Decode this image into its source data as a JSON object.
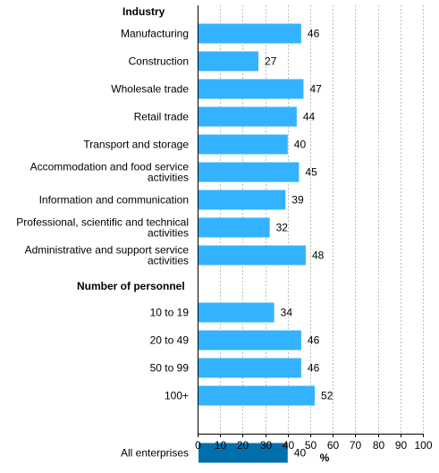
{
  "chart_data": {
    "type": "bar",
    "orientation": "horizontal",
    "xlabel": "%",
    "xlim": [
      0,
      100
    ],
    "xticks": [
      0,
      10,
      20,
      30,
      40,
      50,
      60,
      70,
      80,
      90,
      100
    ],
    "grid": true,
    "groups": [
      {
        "title": "Industry",
        "categories": [
          [
            "Manufacturing"
          ],
          [
            "Construction"
          ],
          [
            "Wholesale trade"
          ],
          [
            "Retail trade"
          ],
          [
            "Transport and storage"
          ],
          [
            "Accommodation and food service",
            "activities"
          ],
          [
            "Information and communication"
          ],
          [
            "Professional, scientific and technical",
            "activities"
          ],
          [
            "Administrative and support service",
            "activities"
          ]
        ],
        "values": [
          46,
          27,
          47,
          44,
          40,
          45,
          39,
          32,
          48
        ]
      },
      {
        "title": "Number of personnel",
        "categories": [
          [
            "10 to 19"
          ],
          [
            "20 to 49"
          ],
          [
            "50 to 99"
          ],
          [
            "100+"
          ]
        ],
        "values": [
          34,
          46,
          46,
          52
        ]
      },
      {
        "title": "",
        "categories": [
          [
            "All enterprises"
          ]
        ],
        "values": [
          40
        ]
      }
    ],
    "colors": {
      "bar": "#33b3ff",
      "total_bar": "#0070ad"
    }
  }
}
